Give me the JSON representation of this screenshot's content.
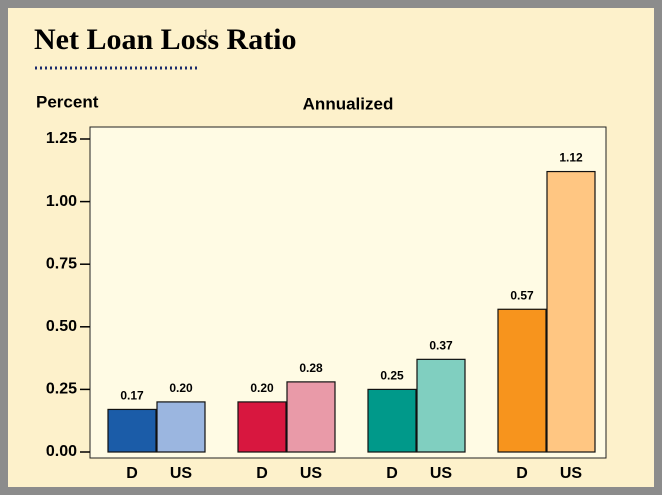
{
  "chart_data": {
    "type": "bar",
    "title": "Net Loan Loss Ratio",
    "title_footnote": "1",
    "subtitle": "Annualized",
    "y_label": "Percent",
    "categories": [
      "D",
      "US",
      "D",
      "US",
      "D",
      "US",
      "D",
      "US"
    ],
    "values": [
      0.17,
      0.2,
      0.2,
      0.28,
      0.25,
      0.37,
      0.57,
      1.12
    ],
    "value_labels": [
      "0.17",
      "0.20",
      "0.20",
      "0.28",
      "0.25",
      "0.37",
      "0.57",
      "1.12"
    ],
    "colors": [
      "#1b5ca8",
      "#9bb6e0",
      "#d8173f",
      "#e99aa8",
      "#00998a",
      "#80cfc0",
      "#f7941d",
      "#ffc682"
    ],
    "ylim": [
      0,
      1.25
    ],
    "yticks": [
      {
        "value": 0,
        "label": "0.00"
      },
      {
        "value": 0.25,
        "label": "0.25"
      },
      {
        "value": 0.5,
        "label": "0.50"
      },
      {
        "value": 0.75,
        "label": "0.75"
      },
      {
        "value": 1,
        "label": "1.00"
      },
      {
        "value": 1.25,
        "label": "1.25"
      }
    ]
  }
}
